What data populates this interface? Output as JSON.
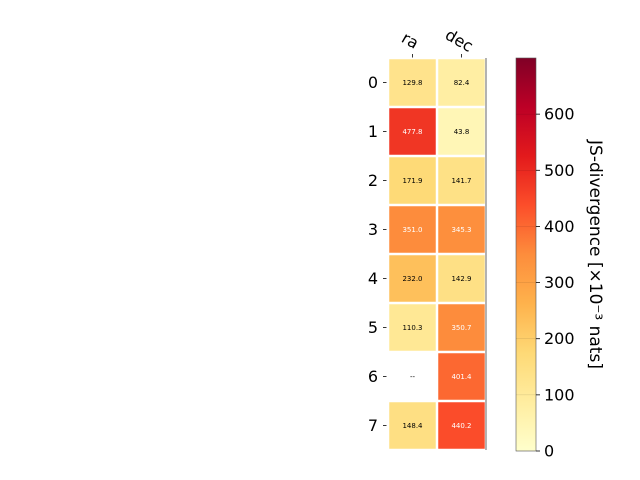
{
  "chart_data": {
    "type": "heatmap",
    "columns": [
      "ra",
      "dec"
    ],
    "rows": [
      "0",
      "1",
      "2",
      "3",
      "4",
      "5",
      "6",
      "7"
    ],
    "values": [
      [
        129.8,
        82.4
      ],
      [
        477.8,
        43.8
      ],
      [
        171.9,
        141.7
      ],
      [
        351.0,
        345.3
      ],
      [
        232.0,
        142.9
      ],
      [
        110.3,
        350.7
      ],
      [
        null,
        401.4
      ],
      [
        148.4,
        440.2
      ]
    ],
    "cell_labels": [
      [
        "129.8",
        "82.4"
      ],
      [
        "477.8",
        "43.8"
      ],
      [
        "171.9",
        "141.7"
      ],
      [
        "351.0",
        "345.3"
      ],
      [
        "232.0",
        "142.9"
      ],
      [
        "110.3",
        "350.7"
      ],
      [
        "--",
        "401.4"
      ],
      [
        "148.4",
        "440.2"
      ]
    ],
    "colormap": "YlOrRd",
    "colorbar": {
      "label": "JS-divergence [×10⁻³ nats]",
      "range": [
        0,
        700
      ],
      "ticks": [
        0,
        100,
        200,
        300,
        400,
        500,
        600
      ],
      "tick_labels": [
        "0",
        "100",
        "200",
        "300",
        "400",
        "500",
        "600"
      ]
    }
  }
}
